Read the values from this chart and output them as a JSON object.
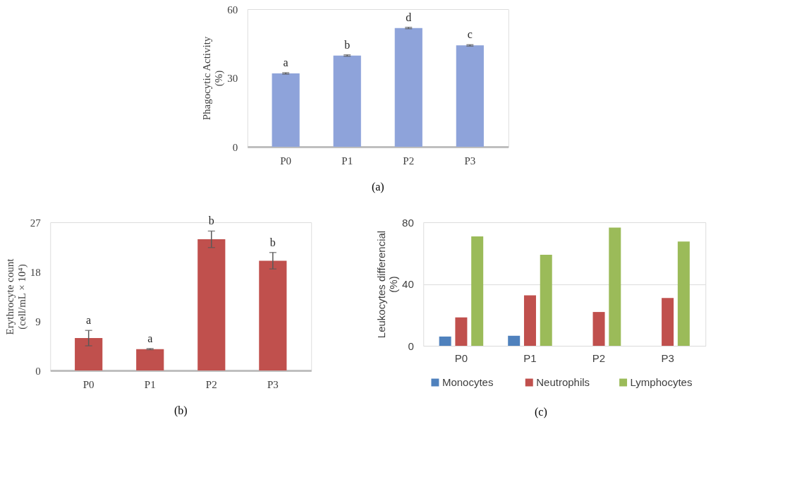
{
  "chart_data": [
    {
      "type": "bar",
      "ylabel": "Phagocytic Activity\n(%)",
      "categories": [
        "P0",
        "P1",
        "P2",
        "P3"
      ],
      "values": [
        32,
        39.8,
        51.8,
        44.2
      ],
      "errors": [
        0.3,
        0.3,
        0.3,
        0.3
      ],
      "color": "#8ea3da",
      "value_labels": [
        "a",
        "b",
        "d",
        "c"
      ],
      "ylim": [
        0,
        60
      ],
      "yticks": [
        0,
        30,
        60
      ],
      "grid": false,
      "annotations": [
        "(a)"
      ]
    },
    {
      "type": "bar",
      "ylabel": "Erythrocyte count\n(cell/mL × 10⁴)",
      "categories": [
        "P0",
        "P1",
        "P2",
        "P3"
      ],
      "values": [
        5.9,
        3.9,
        23.9,
        20.0
      ],
      "errors": [
        1.4,
        0.1,
        1.5,
        1.5
      ],
      "color": "#c0504d",
      "value_labels": [
        "a",
        "a",
        "b",
        "b"
      ],
      "ylim": [
        0,
        27
      ],
      "yticks": [
        0,
        9,
        18,
        27
      ],
      "grid": false,
      "annotations": [
        "(b)"
      ]
    },
    {
      "type": "bar",
      "ylabel": "Leukocytes differencial\n(%)",
      "categories": [
        "P0",
        "P1",
        "P2",
        "P3"
      ],
      "series": [
        {
          "name": "Monocytes",
          "color": "#4f81bd",
          "values": [
            6,
            6.5,
            0,
            0
          ]
        },
        {
          "name": "Neutrophils",
          "color": "#c0504d",
          "values": [
            18.4,
            32.7,
            21.9,
            31
          ]
        },
        {
          "name": "Lymphocytes",
          "color": "#9bbb59",
          "values": [
            70.9,
            59,
            76.6,
            67.5
          ]
        }
      ],
      "ylim": [
        0,
        80
      ],
      "yticks": [
        0,
        40,
        80
      ],
      "grid": "y",
      "legend": "bottom",
      "annotations": [
        "(c)"
      ]
    }
  ]
}
